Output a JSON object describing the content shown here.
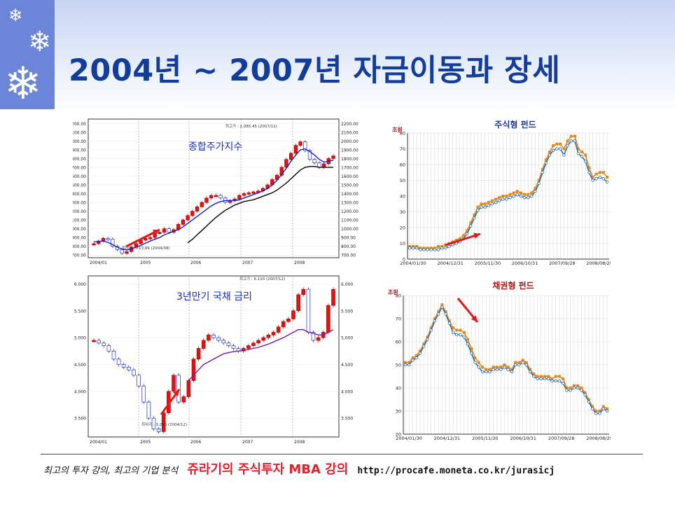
{
  "slide": {
    "title": "2004년 ~ 2007년 자금이동과 장세",
    "icons": [
      "snowflake-icon",
      "snowflake-icon",
      "snowflake-icon"
    ]
  },
  "footer": {
    "tagline": "최고의 투자 강의, 최고의 기업 분석",
    "course": "쥬라기의 주식투자 MBA 강의",
    "url": "http://procafe.moneta.co.kr/jurasicj"
  },
  "colors": {
    "title": "#123d9a",
    "accent_red": "#e0202a",
    "sidebar": "#6b86d8",
    "fund_orange": "#e08a1e",
    "fund_blue": "#2f6ea8"
  },
  "chart_data": [
    {
      "type": "line",
      "title": "종합주가지수",
      "x_ticks": [
        "2004/01",
        "2005",
        "2006",
        "2007",
        "2008"
      ],
      "y_ticks": [
        700,
        800,
        900,
        1000,
        1100,
        1200,
        1300,
        1400,
        1500,
        1600,
        1700,
        1800,
        1900,
        2000,
        2100,
        2200
      ],
      "y_tick_labels": [
        "700.00",
        "800.00",
        "900.00",
        "1000.00",
        "1100.00",
        "1200.00",
        "1300.00",
        "1400.00",
        "1500.00",
        "1600.00",
        "1700.00",
        "1800.00",
        "1900.00",
        "2000.00",
        "2100.00",
        "2200.00"
      ],
      "ylim": [
        670,
        2250
      ],
      "annotations": {
        "high": "최고가 : 2,085.45 (2007/11)",
        "low": "최저가 : 713.99 (2004/08)"
      },
      "series": [
        {
          "values": [
            830,
            860,
            890,
            880,
            800,
            760,
            720,
            740,
            790,
            830,
            870,
            890,
            900,
            950,
            960,
            1000,
            960,
            990,
            1050,
            1100,
            1150,
            1200,
            1250,
            1300,
            1350,
            1380,
            1380,
            1350,
            1300,
            1320,
            1340,
            1380,
            1400,
            1410,
            1420,
            1430,
            1460,
            1500,
            1560,
            1610,
            1700,
            1790,
            1860,
            1950,
            1990,
            1890,
            1790,
            1750,
            1700,
            1740,
            1800,
            1830
          ]
        },
        {
          "values": [
            850,
            855,
            860,
            845,
            820,
            790,
            770,
            760,
            770,
            790,
            810,
            835,
            860,
            880,
            900,
            930,
            950,
            970,
            990,
            1020,
            1060,
            1100,
            1140,
            1180,
            1220,
            1260,
            1290,
            1310,
            1320,
            1320,
            1320,
            1330,
            1350,
            1370,
            1390,
            1410,
            1430,
            1460,
            1500,
            1550,
            1620,
            1690,
            1770,
            1840,
            1900,
            1910,
            1880,
            1840,
            1790,
            1760,
            1770,
            1780
          ]
        },
        {
          "values": [
            null,
            null,
            null,
            null,
            null,
            null,
            null,
            null,
            null,
            null,
            null,
            null,
            null,
            null,
            null,
            null,
            null,
            null,
            null,
            null,
            840,
            880,
            930,
            980,
            1030,
            1080,
            1130,
            1170,
            1210,
            1240,
            1270,
            1290,
            1310,
            1320,
            1330,
            1350,
            1370,
            1390,
            1410,
            1440,
            1480,
            1520,
            1570,
            1620,
            1670,
            1700,
            1710,
            1710,
            1700,
            1700,
            1700,
            1700
          ]
        }
      ]
    },
    {
      "type": "line",
      "title": "3년만기 국채 금리",
      "x_ticks": [
        "2004/01",
        "2005",
        "2006",
        "2007",
        "2008"
      ],
      "y_ticks": [
        3.5,
        4.0,
        4.5,
        5.0,
        5.5,
        6.0
      ],
      "y_tick_labels": [
        "3.500",
        "4.000",
        "4.500",
        "5.000",
        "5.500",
        "6.000"
      ],
      "ylim": [
        3.15,
        6.15
      ],
      "annotations": {
        "high": "최고가 : 6.110 (2007/12)",
        "low": "최저가 : 3.240 (2004/12)"
      },
      "series": [
        {
          "values": [
            4.95,
            4.9,
            4.85,
            4.75,
            4.6,
            4.5,
            4.45,
            4.4,
            4.3,
            4.1,
            3.8,
            3.5,
            3.3,
            3.25,
            3.6,
            4.0,
            4.3,
            3.8,
            3.9,
            4.2,
            4.6,
            4.8,
            4.95,
            5.05,
            5.0,
            4.95,
            4.9,
            4.85,
            4.8,
            4.75,
            4.8,
            4.85,
            4.9,
            4.95,
            5.0,
            5.05,
            5.1,
            5.2,
            5.3,
            5.35,
            5.5,
            5.8,
            5.9,
            5.1,
            4.95,
            5.0,
            5.1,
            5.6,
            5.9
          ]
        },
        {
          "values": [
            null,
            null,
            null,
            null,
            null,
            null,
            null,
            null,
            null,
            null,
            null,
            null,
            null,
            null,
            null,
            null,
            null,
            null,
            null,
            4.2,
            4.3,
            4.4,
            4.5,
            4.55,
            4.6,
            4.65,
            4.7,
            4.72,
            4.74,
            4.75,
            4.76,
            4.78,
            4.8,
            4.82,
            4.85,
            4.88,
            4.92,
            4.96,
            5.0,
            5.05,
            5.1,
            5.15,
            5.15,
            5.1,
            5.08,
            5.05,
            5.05,
            5.1,
            5.15
          ]
        }
      ]
    },
    {
      "type": "line",
      "title": "주식형 펀드",
      "ylabel": "조원",
      "x_ticks": [
        "2004/01/30",
        "2004/12/31",
        "2005/11/30",
        "2006/10/31",
        "2007/09/28",
        "2008/08/29"
      ],
      "y_ticks": [
        0,
        10,
        20,
        30,
        40,
        50,
        60,
        70,
        80
      ],
      "ylim": [
        0,
        80
      ],
      "series": [
        {
          "values": [
            8,
            8,
            8,
            7,
            7,
            7,
            7,
            7,
            8,
            8,
            9,
            10,
            11,
            12,
            13,
            15,
            18,
            23,
            28,
            33,
            35,
            35,
            36,
            37,
            38,
            39,
            40,
            40,
            41,
            42,
            43,
            42,
            41,
            41,
            42,
            45,
            50,
            57,
            63,
            68,
            72,
            73,
            73,
            70,
            75,
            78,
            78,
            70,
            68,
            66,
            58,
            52,
            54,
            55,
            55,
            52
          ]
        },
        {
          "values": [
            7,
            7,
            7,
            6,
            6,
            6,
            6,
            6,
            6,
            7,
            7,
            8,
            9,
            10,
            11,
            13,
            16,
            21,
            26,
            31,
            33,
            33,
            34,
            35,
            36,
            37,
            38,
            38,
            39,
            40,
            41,
            40,
            39,
            39,
            40,
            43,
            48,
            55,
            61,
            66,
            69,
            70,
            70,
            66,
            72,
            75,
            75,
            67,
            65,
            62,
            55,
            50,
            51,
            52,
            51,
            49
          ]
        }
      ]
    },
    {
      "type": "line",
      "title": "채권형 펀드",
      "ylabel": "조원",
      "x_ticks": [
        "2004/01/30",
        "2004/12/31",
        "2005/11/30",
        "2006/10/31",
        "2007/09/28",
        "2008/08/29"
      ],
      "y_ticks": [
        20,
        30,
        40,
        50,
        60,
        70,
        80
      ],
      "ylim": [
        20,
        80
      ],
      "series": [
        {
          "values": [
            51,
            51,
            53,
            54,
            56,
            59,
            62,
            66,
            70,
            73,
            76,
            73,
            69,
            66,
            65,
            65,
            64,
            61,
            57,
            53,
            51,
            49,
            48,
            48,
            49,
            49,
            49,
            50,
            49,
            48,
            51,
            51,
            52,
            51,
            48,
            46,
            45,
            45,
            45,
            45,
            44,
            45,
            45,
            44,
            40,
            40,
            41,
            41,
            40,
            38,
            35,
            32,
            30,
            30,
            32,
            31
          ]
        },
        {
          "values": [
            50,
            50,
            52,
            53,
            55,
            58,
            61,
            65,
            69,
            72,
            75,
            72,
            68,
            64,
            63,
            63,
            62,
            59,
            55,
            51,
            49,
            47,
            47,
            47,
            48,
            48,
            48,
            49,
            48,
            47,
            50,
            50,
            51,
            50,
            47,
            45,
            44,
            44,
            44,
            44,
            43,
            43,
            43,
            42,
            39,
            39,
            40,
            40,
            39,
            37,
            34,
            31,
            29,
            29,
            31,
            30
          ]
        }
      ]
    }
  ]
}
